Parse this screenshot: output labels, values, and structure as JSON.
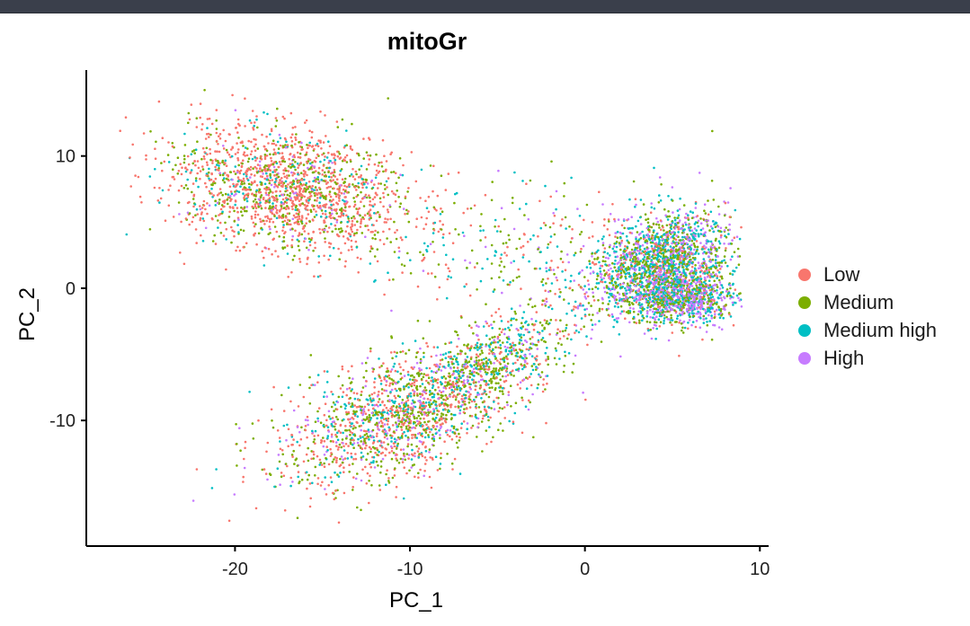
{
  "chart_data": {
    "type": "scatter",
    "title": "mitoGr",
    "xlabel": "PC_1",
    "ylabel": "PC_2",
    "xlim": [
      -28.5,
      10.5
    ],
    "ylim": [
      -19.5,
      16.5
    ],
    "x_ticks": [
      -20,
      -10,
      0,
      10
    ],
    "y_ticks": [
      -10,
      0,
      10
    ],
    "grid": false,
    "legend_position": "right",
    "series": [
      {
        "name": "Low",
        "color": "#F8766D"
      },
      {
        "name": "Medium",
        "color": "#7CAE00"
      },
      {
        "name": "Medium high",
        "color": "#00BFC4"
      },
      {
        "name": "High",
        "color": "#C77CFF"
      }
    ],
    "clusters": [
      {
        "center": [
          -17,
          7.5
        ],
        "spread": [
          3.5,
          2.2
        ],
        "angle_deg": -20,
        "weights": [
          0.6,
          0.26,
          0.09,
          0.05
        ]
      },
      {
        "center": [
          -11,
          -10
        ],
        "spread": [
          3.8,
          2.0
        ],
        "angle_deg": 30,
        "weights": [
          0.42,
          0.32,
          0.16,
          0.1
        ]
      },
      {
        "center": [
          -6,
          -6
        ],
        "spread": [
          4.0,
          1.5
        ],
        "angle_deg": 35,
        "weights": [
          0.2,
          0.35,
          0.28,
          0.17
        ]
      },
      {
        "center": [
          4.5,
          2.0
        ],
        "spread": [
          1.6,
          2.2
        ],
        "angle_deg": -45,
        "weights": [
          0.1,
          0.3,
          0.32,
          0.28
        ]
      },
      {
        "center": [
          5.5,
          -0.8
        ],
        "spread": [
          1.6,
          1.0
        ],
        "angle_deg": 0,
        "weights": [
          0.08,
          0.25,
          0.3,
          0.37
        ]
      },
      {
        "center": [
          -4,
          3
        ],
        "spread": [
          5.0,
          2.5
        ],
        "angle_deg": -10,
        "weights": [
          0.35,
          0.3,
          0.25,
          0.1
        ]
      }
    ]
  }
}
